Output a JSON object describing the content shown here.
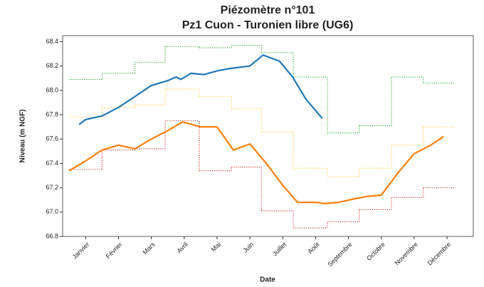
{
  "chart_data": {
    "type": "line",
    "title": "Piézomètre n°101",
    "subtitle": "Pz1 Cuon - Turonien libre (UG6)",
    "x_label": "Date",
    "y_label": "Niveau (m NGF)",
    "xlim": [
      0.3,
      12.8
    ],
    "xticks": [
      {
        "value": 1,
        "label": "Janvier"
      },
      {
        "value": 2,
        "label": "Février"
      },
      {
        "value": 3,
        "label": "Mars"
      },
      {
        "value": 4,
        "label": "Avril"
      },
      {
        "value": 5,
        "label": "Mai"
      },
      {
        "value": 6,
        "label": "Juin"
      },
      {
        "value": 7,
        "label": "Juillet"
      },
      {
        "value": 8,
        "label": "Août"
      },
      {
        "value": 9,
        "label": "Septembre"
      },
      {
        "value": 10,
        "label": "Octobre"
      },
      {
        "value": 11,
        "label": "Novembre"
      },
      {
        "value": 12,
        "label": "Décembre"
      }
    ],
    "ylim": [
      66.8,
      68.45
    ],
    "yticks": [
      66.8,
      {
        "value": 67,
        "label": "67.0"
      },
      67.2,
      67.4,
      67.6,
      67.8,
      {
        "value": 68,
        "label": "68.0"
      },
      68.2,
      68.4
    ],
    "series": [
      {
        "color": "#2ca02c",
        "linestyle": "dotted",
        "drawstyle": "steps",
        "bins": [
          0.5,
          1.5,
          2.5,
          3.42,
          4.46,
          5.44,
          6.35,
          7.32,
          8.36,
          9.33,
          10.31,
          11.28,
          12.25
        ],
        "values": [
          68.09,
          68.14,
          68.23,
          68.36,
          68.35,
          68.37,
          68.31,
          68.11,
          67.65,
          67.71,
          68.11,
          68.06
        ]
      },
      {
        "color": "#ffc93c",
        "linestyle": "dotted",
        "drawstyle": "steps",
        "bins": [
          0.5,
          1.5,
          2.5,
          3.42,
          4.46,
          5.44,
          6.35,
          7.32,
          8.36,
          9.33,
          10.31,
          11.28,
          12.25
        ],
        "values": [
          67.78,
          67.86,
          67.88,
          68.01,
          67.95,
          67.85,
          67.66,
          67.36,
          67.29,
          67.36,
          67.55,
          67.7
        ]
      },
      {
        "color": "#d62728",
        "linestyle": "dotted",
        "drawstyle": "steps",
        "bins": [
          0.5,
          1.5,
          2.5,
          3.42,
          4.46,
          5.44,
          6.35,
          7.32,
          8.36,
          9.33,
          10.31,
          11.28,
          12.25
        ],
        "values": [
          67.35,
          67.51,
          67.52,
          67.75,
          67.34,
          67.37,
          67.01,
          66.87,
          66.92,
          67.02,
          67.12,
          67.2
        ]
      },
      {
        "color": "#1f77b4",
        "linestyle": "solid",
        "x": [
          0.8,
          1.0,
          1.5,
          2.0,
          2.5,
          3.0,
          3.5,
          3.75,
          3.9,
          4.2,
          4.6,
          5.0,
          5.4,
          6.0,
          6.4,
          6.9,
          7.3,
          7.7,
          8.2
        ],
        "values": [
          67.72,
          67.76,
          67.79,
          67.86,
          67.95,
          68.04,
          68.08,
          68.11,
          68.09,
          68.14,
          68.13,
          68.16,
          68.18,
          68.2,
          68.29,
          68.24,
          68.11,
          67.93,
          67.77
        ]
      },
      {
        "color": "#ff7f0e",
        "linestyle": "solid",
        "x": [
          0.5,
          1.0,
          1.5,
          2.0,
          2.5,
          3.0,
          3.5,
          3.95,
          4.5,
          5.0,
          5.5,
          6.0,
          6.5,
          7.0,
          7.45,
          8.0,
          8.3,
          8.7,
          9.2,
          9.6,
          10.0,
          10.5,
          11.0,
          11.5,
          11.89
        ],
        "values": [
          67.34,
          67.42,
          67.51,
          67.55,
          67.52,
          67.6,
          67.67,
          67.74,
          67.7,
          67.7,
          67.51,
          67.56,
          67.4,
          67.22,
          67.08,
          67.08,
          67.07,
          67.08,
          67.11,
          67.13,
          67.14,
          67.32,
          67.48,
          67.55,
          67.62
        ]
      }
    ]
  }
}
